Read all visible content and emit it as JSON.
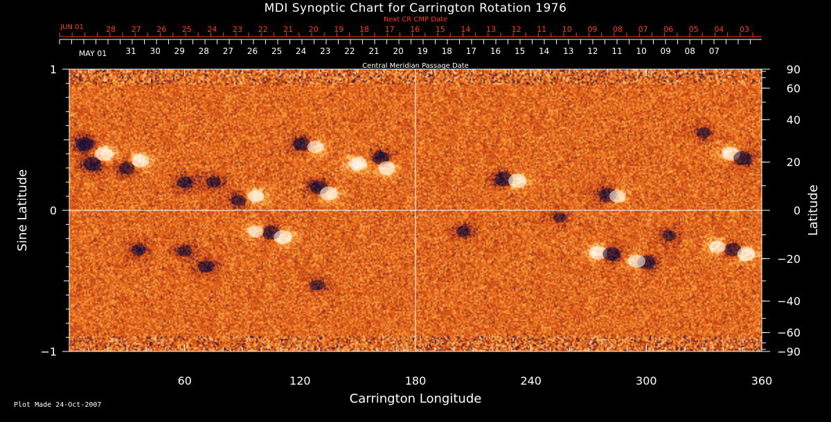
{
  "chart_data": {
    "type": "heatmap",
    "title": "MDI Synoptic Chart for Carrington Rotation 1976",
    "xlabel": "Carrington Longitude",
    "ylabel_left": "Sine Latitude",
    "ylabel_right": "Latitude",
    "xlim": [
      0,
      360
    ],
    "ylim_sine": [
      -1,
      1
    ],
    "x_ticks": [
      60,
      120,
      180,
      240,
      300,
      360
    ],
    "left_ticks": [
      {
        "value": 1,
        "label": "1"
      },
      {
        "value": 0,
        "label": "0"
      },
      {
        "value": -1,
        "label": "−1"
      }
    ],
    "right_ticks_latitude_deg": [
      90,
      60,
      40,
      20,
      0,
      -20,
      -40,
      -60,
      -90
    ],
    "right_tick_labels": [
      "90",
      "60",
      "40",
      "20",
      "0",
      "−20",
      "−40",
      "−60",
      "−90"
    ],
    "gridlines": {
      "longitude": [
        180
      ],
      "sine_latitude": [
        0
      ]
    },
    "top_axis": {
      "label": "Next CR CMP Date",
      "color": "#ff3b1f",
      "first_label": "JUN 01",
      "dates": [
        "28",
        "27",
        "26",
        "25",
        "24",
        "23",
        "22",
        "21",
        "20",
        "19",
        "18",
        "17",
        "16",
        "15",
        "14",
        "13",
        "12",
        "11",
        "10",
        "09",
        "08",
        "07",
        "06",
        "05",
        "04",
        "03"
      ]
    },
    "middle_axis": {
      "label": "Central Meridian Passage Date",
      "first_label": "MAY 01",
      "dates": [
        "31",
        "30",
        "29",
        "28",
        "27",
        "26",
        "25",
        "24",
        "23",
        "22",
        "21",
        "20",
        "19",
        "18",
        "17",
        "16",
        "15",
        "14",
        "13",
        "12",
        "11",
        "10",
        "09",
        "08",
        "07"
      ]
    },
    "colors": {
      "background": "#000000",
      "quiet_sun": "#e8661a",
      "positive_polarity": "#ffffff",
      "negative_polarity": "#1a1030",
      "top_axis": "#ff3b1f"
    },
    "active_regions": [
      {
        "lon": 8,
        "lat_sine": 0.47,
        "polarity": "negative",
        "strength": 1.0
      },
      {
        "lon": 12,
        "lat_sine": 0.33,
        "polarity": "negative",
        "strength": 1.0
      },
      {
        "lon": 18,
        "lat_sine": 0.4,
        "polarity": "positive",
        "strength": 1.0
      },
      {
        "lon": 37,
        "lat_sine": 0.35,
        "polarity": "positive",
        "strength": 0.9
      },
      {
        "lon": 30,
        "lat_sine": 0.3,
        "polarity": "negative",
        "strength": 0.7
      },
      {
        "lon": 60,
        "lat_sine": 0.2,
        "polarity": "negative",
        "strength": 0.7
      },
      {
        "lon": 75,
        "lat_sine": 0.2,
        "polarity": "negative",
        "strength": 0.6
      },
      {
        "lon": 97,
        "lat_sine": 0.1,
        "polarity": "positive",
        "strength": 0.8
      },
      {
        "lon": 88,
        "lat_sine": 0.07,
        "polarity": "negative",
        "strength": 0.6
      },
      {
        "lon": 121,
        "lat_sine": 0.47,
        "polarity": "negative",
        "strength": 0.9
      },
      {
        "lon": 128,
        "lat_sine": 0.45,
        "polarity": "positive",
        "strength": 0.8
      },
      {
        "lon": 130,
        "lat_sine": 0.16,
        "polarity": "negative",
        "strength": 1.0
      },
      {
        "lon": 135,
        "lat_sine": 0.12,
        "polarity": "positive",
        "strength": 1.0
      },
      {
        "lon": 150,
        "lat_sine": 0.33,
        "polarity": "positive",
        "strength": 1.0
      },
      {
        "lon": 162,
        "lat_sine": 0.37,
        "polarity": "negative",
        "strength": 0.9
      },
      {
        "lon": 165,
        "lat_sine": 0.3,
        "polarity": "positive",
        "strength": 0.9
      },
      {
        "lon": 105,
        "lat_sine": -0.16,
        "polarity": "negative",
        "strength": 1.0
      },
      {
        "lon": 111,
        "lat_sine": -0.19,
        "polarity": "positive",
        "strength": 1.0
      },
      {
        "lon": 97,
        "lat_sine": -0.15,
        "polarity": "positive",
        "strength": 0.7
      },
      {
        "lon": 36,
        "lat_sine": -0.28,
        "polarity": "negative",
        "strength": 0.6
      },
      {
        "lon": 60,
        "lat_sine": -0.29,
        "polarity": "negative",
        "strength": 0.6
      },
      {
        "lon": 71,
        "lat_sine": -0.4,
        "polarity": "negative",
        "strength": 0.7
      },
      {
        "lon": 129,
        "lat_sine": -0.53,
        "polarity": "negative",
        "strength": 0.5
      },
      {
        "lon": 226,
        "lat_sine": 0.22,
        "polarity": "negative",
        "strength": 1.0
      },
      {
        "lon": 233,
        "lat_sine": 0.21,
        "polarity": "positive",
        "strength": 1.0
      },
      {
        "lon": 280,
        "lat_sine": 0.11,
        "polarity": "negative",
        "strength": 1.0
      },
      {
        "lon": 285,
        "lat_sine": 0.1,
        "polarity": "positive",
        "strength": 0.8
      },
      {
        "lon": 275,
        "lat_sine": -0.3,
        "polarity": "positive",
        "strength": 1.0
      },
      {
        "lon": 282,
        "lat_sine": -0.31,
        "polarity": "negative",
        "strength": 1.0
      },
      {
        "lon": 300,
        "lat_sine": -0.37,
        "polarity": "negative",
        "strength": 1.0
      },
      {
        "lon": 295,
        "lat_sine": -0.36,
        "polarity": "positive",
        "strength": 0.9
      },
      {
        "lon": 345,
        "lat_sine": -0.28,
        "polarity": "negative",
        "strength": 0.9
      },
      {
        "lon": 352,
        "lat_sine": -0.31,
        "polarity": "positive",
        "strength": 1.0
      },
      {
        "lon": 337,
        "lat_sine": -0.26,
        "polarity": "positive",
        "strength": 0.8
      },
      {
        "lon": 344,
        "lat_sine": 0.4,
        "polarity": "positive",
        "strength": 1.0
      },
      {
        "lon": 350,
        "lat_sine": 0.37,
        "polarity": "negative",
        "strength": 1.0
      },
      {
        "lon": 205,
        "lat_sine": -0.15,
        "polarity": "negative",
        "strength": 0.6
      },
      {
        "lon": 312,
        "lat_sine": -0.18,
        "polarity": "negative",
        "strength": 0.5
      },
      {
        "lon": 330,
        "lat_sine": 0.55,
        "polarity": "negative",
        "strength": 0.5
      },
      {
        "lon": 255,
        "lat_sine": -0.05,
        "polarity": "negative",
        "strength": 0.4
      }
    ]
  },
  "footer": {
    "text": "Plot Made 24-Oct-2007"
  }
}
